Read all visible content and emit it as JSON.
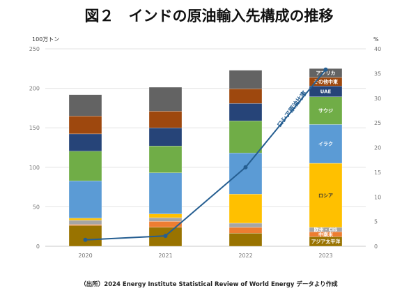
{
  "title": "図２　インドの原油輸入先構成の推移",
  "footer": "（出所）2024 Energy Institute Statistical Review of World Energy データより作成",
  "chart_data": {
    "type": "bar",
    "stacked": true,
    "title": "図２　インドの原油輸入先構成の推移",
    "ylabel": "100万トン",
    "y2label": "%",
    "ylim": [
      0,
      250
    ],
    "y2lim": [
      0,
      40
    ],
    "yticks": [
      0,
      50,
      100,
      150,
      200,
      250
    ],
    "y2ticks": [
      0,
      5,
      10,
      15,
      20,
      25,
      30,
      35,
      40
    ],
    "grid": true,
    "categories": [
      "2020",
      "2021",
      "2022",
      "2023"
    ],
    "series": [
      {
        "name": "アジア太平洋",
        "color": "#997300",
        "text": "#ffffff",
        "values": [
          26.2,
          24.1,
          16.5,
          12.1
        ]
      },
      {
        "name": "中南米",
        "color": "#ED7D31",
        "text": "#ffffff",
        "values": [
          1.4,
          7.4,
          7.4,
          6.2
        ]
      },
      {
        "name": "欧州・CIS",
        "color": "#A5A5A5",
        "text": "#ffffff",
        "values": [
          5.4,
          4.7,
          5.3,
          5.6
        ]
      },
      {
        "name": "ロシア",
        "color": "#FFC000",
        "text": "#333333",
        "values": [
          2.6,
          4.8,
          36.8,
          81.2
        ]
      },
      {
        "name": "イラク",
        "color": "#5B9BD5",
        "text": "#ffffff",
        "values": [
          47.2,
          52.0,
          52.1,
          49.1
        ]
      },
      {
        "name": "サウジ",
        "color": "#70AD47",
        "text": "#ffffff",
        "values": [
          37.5,
          34.0,
          40.6,
          35.1
        ]
      },
      {
        "name": "UAE",
        "color": "#264478",
        "text": "#ffffff",
        "values": [
          22.0,
          23.0,
          22.1,
          13.6
        ]
      },
      {
        "name": "その他中東",
        "color": "#9E480E",
        "text": "#ffffff",
        "values": [
          22.6,
          21.0,
          18.6,
          10.9
        ]
      },
      {
        "name": "アフリカ",
        "color": "#636363",
        "text": "#ffffff",
        "values": [
          27.1,
          30.4,
          23.5,
          11.2
        ]
      }
    ],
    "line": {
      "name": "ロシア原油比率",
      "axis": "right",
      "color": "#255e91",
      "values": [
        1.3,
        2.1,
        16.0,
        35.8
      ]
    }
  }
}
